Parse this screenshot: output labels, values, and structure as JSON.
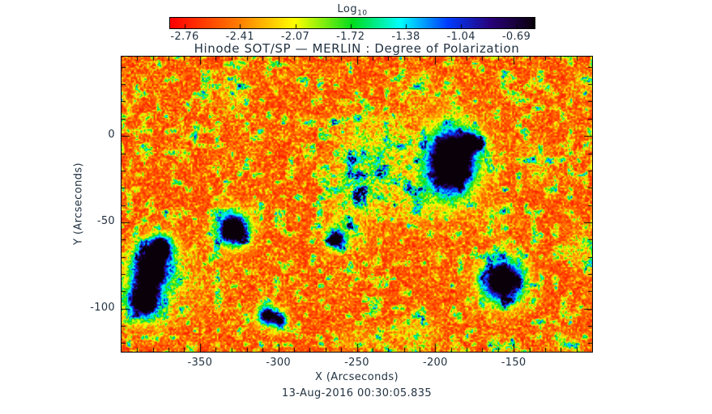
{
  "title": "Hinode SOT/SP — MERLIN : Degree of Polarization",
  "timestamp": "13-Aug-2016 00:30:05.835",
  "text_color": "#233342",
  "colorbar": {
    "label": "Log",
    "label_sub": "10",
    "tick_labels": [
      "-2.76",
      "-2.41",
      "-2.07",
      "-1.72",
      "-1.38",
      "-1.04",
      "-0.69"
    ]
  },
  "axes": {
    "x": {
      "label": "X (Arcseconds)",
      "range": [
        -400,
        -100
      ],
      "major_ticks": [
        -350,
        -300,
        -250,
        -200,
        -150
      ],
      "minor_step": 10
    },
    "y": {
      "label": "Y (Arcseconds)",
      "range": [
        -125,
        46
      ],
      "major_ticks": [
        0,
        -50,
        -100
      ],
      "minor_step": 10
    }
  },
  "chart_data": {
    "type": "heatmap",
    "title": "Hinode SOT/SP — MERLIN : Degree of Polarization",
    "xlabel": "X (Arcseconds)",
    "ylabel": "Y (Arcseconds)",
    "x_range": [
      -400,
      -100
    ],
    "y_range": [
      -125,
      46
    ],
    "value_label": "Log10 Degree of Polarization",
    "value_range": [
      -2.76,
      -0.69
    ],
    "colorbar_ticks": [
      -2.76,
      -2.41,
      -2.07,
      -1.72,
      -1.38,
      -1.04,
      -0.69
    ],
    "legend_position": "top-colorbar",
    "grid": false,
    "colormap_stops": [
      [
        0.0,
        "#ff0000"
      ],
      [
        0.18,
        "#ff7800"
      ],
      [
        0.34,
        "#ffff00"
      ],
      [
        0.5,
        "#00dc1e"
      ],
      [
        0.63,
        "#00ffff"
      ],
      [
        0.76,
        "#003cff"
      ],
      [
        0.88,
        "#280078"
      ],
      [
        1.0,
        "#0a000a"
      ]
    ],
    "background_level_log10": -2.6,
    "sunspots": [
      {
        "x": -190,
        "y": -15,
        "sx": 10,
        "sy": 13,
        "amp": 1.15,
        "hs": 20,
        "ha": 0.38
      },
      {
        "x": -177,
        "y": -4,
        "sx": 4.5,
        "sy": 3.5,
        "amp": 0.8,
        "hs": 8,
        "ha": 0.2
      },
      {
        "x": -329,
        "y": -54,
        "sx": 6.5,
        "sy": 6,
        "amp": 1.05,
        "hs": 12,
        "ha": 0.32
      },
      {
        "x": -381,
        "y": -77,
        "sx": 8,
        "sy": 8,
        "amp": 1.05,
        "hs": 14,
        "ha": 0.3
      },
      {
        "x": -386,
        "y": -96,
        "sx": 7,
        "sy": 6.5,
        "amp": 1.0,
        "hs": 11,
        "ha": 0.25
      },
      {
        "x": -375,
        "y": -64,
        "sx": 5,
        "sy": 4.5,
        "amp": 0.85,
        "hs": 8,
        "ha": 0.15
      },
      {
        "x": -157,
        "y": -84,
        "sx": 8.5,
        "sy": 8,
        "amp": 1.08,
        "hs": 14,
        "ha": 0.33
      },
      {
        "x": -307,
        "y": -104,
        "sx": 4,
        "sy": 3.5,
        "amp": 0.85,
        "hs": 8,
        "ha": 0.2
      },
      {
        "x": -299,
        "y": -107,
        "sx": 3,
        "sy": 3,
        "amp": 0.7,
        "hs": 6,
        "ha": 0.15
      },
      {
        "x": -263,
        "y": -60,
        "sx": 4,
        "sy": 3.5,
        "amp": 0.8,
        "hs": 8,
        "ha": 0.2
      }
    ],
    "diffuse_regions": [
      {
        "x": -235,
        "y": -8,
        "sx": 11,
        "sy": 9,
        "amp": 0.55
      },
      {
        "x": -243,
        "y": -30,
        "sx": 13,
        "sy": 10,
        "amp": 0.5
      },
      {
        "x": -252,
        "y": -20,
        "sx": 8,
        "sy": 18,
        "amp": 0.45
      },
      {
        "x": -258,
        "y": -52,
        "sx": 9,
        "sy": 8,
        "amp": 0.42
      },
      {
        "x": -212,
        "y": -38,
        "sx": 10,
        "sy": 9,
        "amp": 0.45
      },
      {
        "x": -329,
        "y": 25,
        "sx": 7,
        "sy": 7,
        "amp": 0.4
      },
      {
        "x": -210,
        "y": 28,
        "sx": 8,
        "sy": 6,
        "amp": 0.35
      },
      {
        "x": -255,
        "y": 9,
        "sx": 24,
        "sy": 1.5,
        "amp": 0.38
      },
      {
        "x": -370,
        "y": -88,
        "sx": 18,
        "sy": 14,
        "amp": 0.3
      },
      {
        "x": -103,
        "y": -66,
        "sx": 6,
        "sy": 9,
        "amp": 0.4
      },
      {
        "x": -106,
        "y": 30,
        "sx": 5,
        "sy": 6,
        "amp": 0.35
      },
      {
        "x": -212,
        "y": -115,
        "sx": 11,
        "sy": 7,
        "amp": 0.35
      },
      {
        "x": -116,
        "y": -121,
        "sx": 7,
        "sy": 5,
        "amp": 0.33
      },
      {
        "x": -245,
        "y": -117,
        "sx": 12,
        "sy": 5,
        "amp": 0.3
      },
      {
        "x": -160,
        "y": -45,
        "sx": 7,
        "sy": 6,
        "amp": 0.3
      },
      {
        "x": -136,
        "y": -15,
        "sx": 7,
        "sy": 8,
        "amp": 0.35
      }
    ],
    "noise": {
      "seeds": [
        1234,
        5678,
        9999
      ],
      "fine_cells": [
        290,
        182
      ],
      "mid_cells": [
        64,
        40
      ],
      "large_cells": [
        24,
        15
      ]
    }
  }
}
